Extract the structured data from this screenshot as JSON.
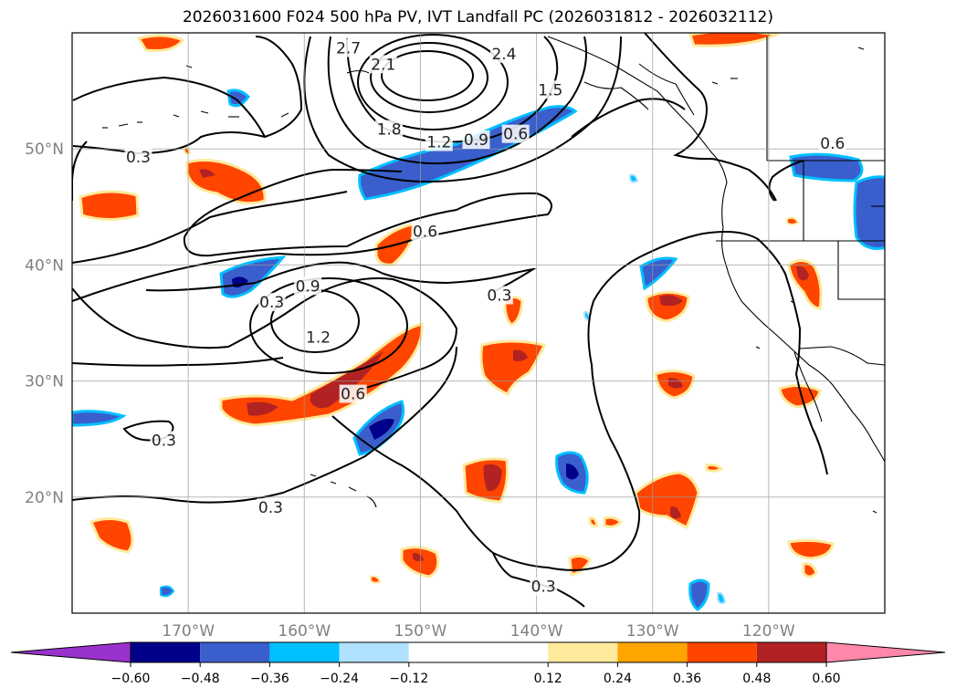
{
  "title": "2026031600 F024 500 hPa PV, IVT Landfall PC (2026031812 - 2026032112)",
  "map": {
    "lon_range": [
      -180,
      -110
    ],
    "lat_range": [
      10,
      60
    ],
    "lon_ticks": [
      {
        "lon": -170,
        "label": "170°W"
      },
      {
        "lon": -160,
        "label": "160°W"
      },
      {
        "lon": -150,
        "label": "150°W"
      },
      {
        "lon": -140,
        "label": "140°W"
      },
      {
        "lon": -130,
        "label": "130°W"
      },
      {
        "lon": -120,
        "label": "120°W"
      }
    ],
    "lat_ticks": [
      {
        "lat": 50,
        "label": "50°N"
      },
      {
        "lat": 40,
        "label": "40°N"
      },
      {
        "lat": 30,
        "label": "30°N"
      },
      {
        "lat": 20,
        "label": "20°N"
      }
    ],
    "grid": true
  },
  "contour_labels": [
    {
      "text": "2.7",
      "lon": -156.2,
      "lat": 58.7
    },
    {
      "text": "2.4",
      "lon": -142.8,
      "lat": 58.2
    },
    {
      "text": "2.1",
      "lon": -153.2,
      "lat": 57.3
    },
    {
      "text": "1.5",
      "lon": -138.8,
      "lat": 55.1
    },
    {
      "text": "1.8",
      "lon": -152.7,
      "lat": 51.7
    },
    {
      "text": "1.2",
      "lon": -148.4,
      "lat": 50.6
    },
    {
      "text": "0.9",
      "lon": -145.2,
      "lat": 50.8
    },
    {
      "text": "0.6",
      "lon": -141.8,
      "lat": 51.3
    },
    {
      "text": "0.6",
      "lon": -114.5,
      "lat": 50.5
    },
    {
      "text": "0.3",
      "lon": -174.3,
      "lat": 49.3
    },
    {
      "text": "0.6",
      "lon": -149.6,
      "lat": 42.9
    },
    {
      "text": "0.3",
      "lon": -162.8,
      "lat": 36.8
    },
    {
      "text": "0.9",
      "lon": -159.7,
      "lat": 38.2
    },
    {
      "text": "1.2",
      "lon": -158.8,
      "lat": 33.8
    },
    {
      "text": "0.3",
      "lon": -143.2,
      "lat": 37.4
    },
    {
      "text": "0.6",
      "lon": -155.8,
      "lat": 28.9
    },
    {
      "text": "0.3",
      "lon": -172.1,
      "lat": 24.9
    },
    {
      "text": "0.3",
      "lon": -162.9,
      "lat": 19.1
    },
    {
      "text": "0.3",
      "lon": -139.4,
      "lat": 12.3
    }
  ],
  "colorbar": {
    "levels": [
      -0.6,
      -0.48,
      -0.36,
      -0.24,
      -0.12,
      0.12,
      0.24,
      0.36,
      0.48,
      0.6
    ],
    "tick_labels": [
      "−0.60",
      "−0.48",
      "−0.36",
      "−0.24",
      "−0.12",
      "0.12",
      "0.24",
      "0.36",
      "0.48",
      "0.60"
    ],
    "colors": [
      "#9932cc",
      "#00008b",
      "#3a5fcd",
      "#00bfff",
      "#b0e2ff",
      "#ffffff",
      "#ffe99a",
      "#ffa500",
      "#ff4500",
      "#b22222",
      "#ff88aa"
    ],
    "extend": "both"
  }
}
